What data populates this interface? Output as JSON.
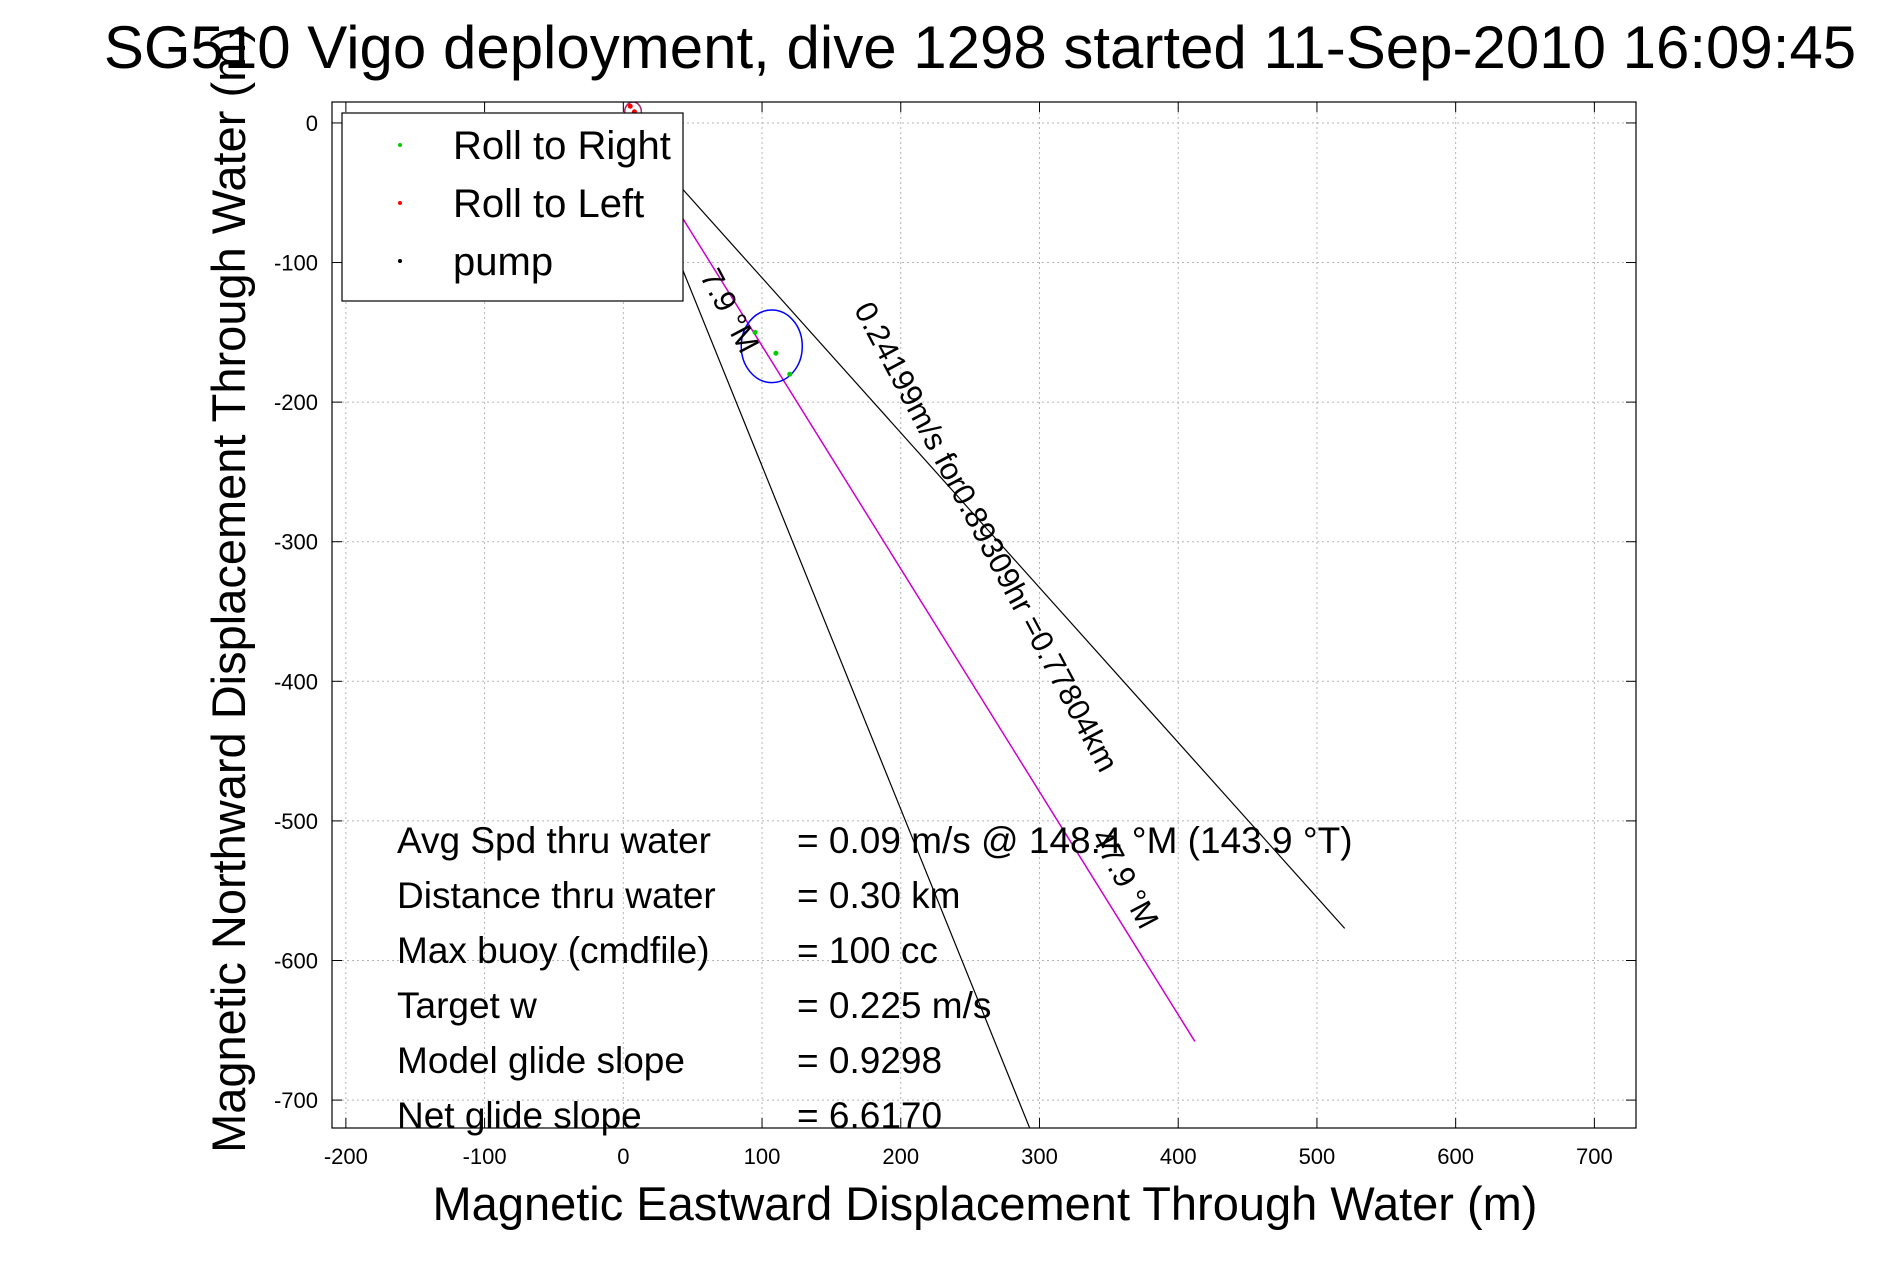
{
  "chart_data": {
    "type": "line",
    "title": "SG510 Vigo deployment, dive 1298 started 11-Sep-2010 16:09:45",
    "xlabel": "Magnetic Eastward Displacement Through Water (m)",
    "ylabel": "Magnetic Northward Displacement Through Water (m)",
    "xlim": [
      -210,
      730
    ],
    "ylim": [
      -720,
      15
    ],
    "xticks": [
      -200,
      -100,
      0,
      100,
      200,
      300,
      400,
      500,
      600,
      700
    ],
    "yticks": [
      0,
      -100,
      -200,
      -300,
      -400,
      -500,
      -600,
      -700
    ],
    "grid": true,
    "legend_position": "top-left",
    "legend": [
      {
        "label": "Roll to Right",
        "color": "#00cc00"
      },
      {
        "label": "Roll to Left",
        "color": "#ff0000"
      },
      {
        "label": "pump",
        "color": "#000000"
      }
    ],
    "series": [
      {
        "name": "Roll to Right",
        "color": "#00cc00",
        "x": [
          95,
          110,
          120
        ],
        "y": [
          -150,
          -165,
          -180
        ]
      },
      {
        "name": "Roll to Left",
        "color": "#ff0000",
        "x": [
          2,
          5,
          8
        ],
        "y": [
          5,
          12,
          8
        ]
      },
      {
        "name": "pump",
        "color": "#000000",
        "x": [
          0
        ],
        "y": [
          0
        ]
      }
    ],
    "track": {
      "color": "#cc00cc",
      "x": [
        0,
        412
      ],
      "y": [
        0,
        -658
      ]
    },
    "envelope_lines": [
      {
        "x": [
          0,
          520
        ],
        "y": [
          0,
          -577
        ]
      },
      {
        "x": [
          0,
          297
        ],
        "y": [
          0,
          -730
        ]
      }
    ],
    "ellipses": [
      {
        "color": "#0000ff",
        "cx": 107,
        "cy": -160,
        "rx": 22,
        "ry": 26
      },
      {
        "color": "#aa2266",
        "cx": 7,
        "cy": 8,
        "rx": 6,
        "ry": 7
      }
    ],
    "annotations": [
      {
        "text": "0.24199m/s for0.89309hr =0.77804km",
        "x": 255,
        "y": -300,
        "angle_deg": 62
      },
      {
        "text": "47.9 °M",
        "x": 355,
        "y": -545,
        "angle_deg": 62
      },
      {
        "text": "7.9 °M",
        "x": 70,
        "y": -138,
        "angle_deg": 62
      }
    ],
    "stats": [
      {
        "label": "Avg Spd thru water",
        "value": "=  0.09 m/s @ 148.4 °M (143.9 °T)"
      },
      {
        "label": "Distance thru water",
        "value": "=  0.30 km"
      },
      {
        "label": "Max buoy (cmdfile)",
        "value": "= 100 cc"
      },
      {
        "label": "Target w",
        "value": "= 0.225 m/s"
      },
      {
        "label": "Model glide slope",
        "value": "= 0.9298"
      },
      {
        "label": "Net glide slope",
        "value": "= 6.6170"
      }
    ]
  }
}
